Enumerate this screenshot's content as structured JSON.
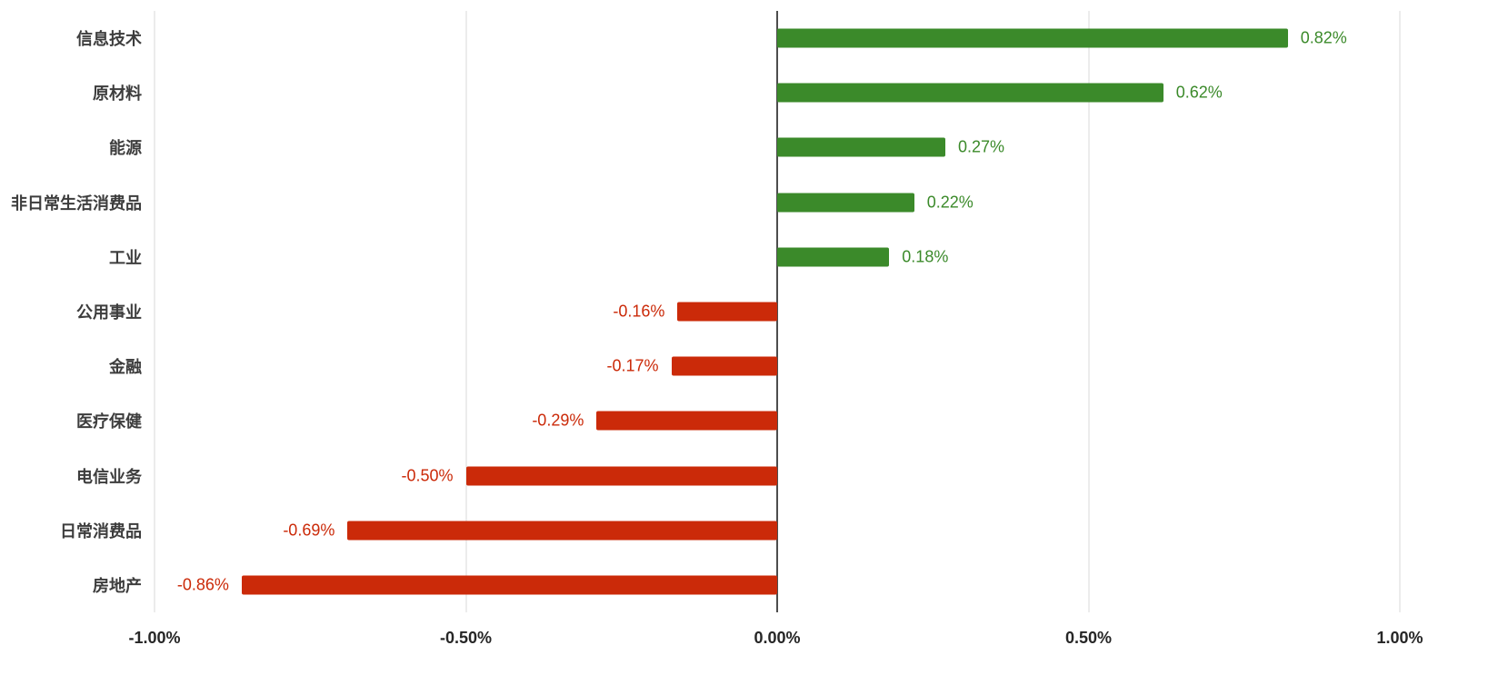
{
  "chart_data": {
    "type": "bar",
    "orientation": "horizontal",
    "title": "",
    "xlabel": "",
    "ylabel": "",
    "legend": null,
    "grid": true,
    "categories": [
      "信息技术",
      "原材料",
      "能源",
      "非日常生活消费品",
      "工业",
      "公用事业",
      "金融",
      "医疗保健",
      "电信业务",
      "日常消费品",
      "房地产"
    ],
    "values": [
      0.82,
      0.62,
      0.27,
      0.22,
      0.18,
      -0.16,
      -0.17,
      -0.29,
      -0.5,
      -0.69,
      -0.86
    ],
    "value_labels": [
      "0.82%",
      "0.62%",
      "0.27%",
      "0.22%",
      "0.18%",
      "-0.16%",
      "-0.17%",
      "-0.29%",
      "-0.50%",
      "-0.69%",
      "-0.86%"
    ],
    "x_ticks": [
      "-1.00%",
      "-0.50%",
      "0.00%",
      "0.50%",
      "1.00%"
    ],
    "x_tick_values": [
      -1,
      -0.5,
      0,
      0.5,
      1
    ],
    "xlim": [
      -1,
      1
    ],
    "colors": {
      "positive": "#3b8a2a",
      "negative": "#cb2a09",
      "category_label": "#3d3d3d",
      "axis_label": "#262626",
      "gridline": "#d9d9d9",
      "zero_line": "#4d4d4d",
      "background": "#ffffff"
    }
  }
}
